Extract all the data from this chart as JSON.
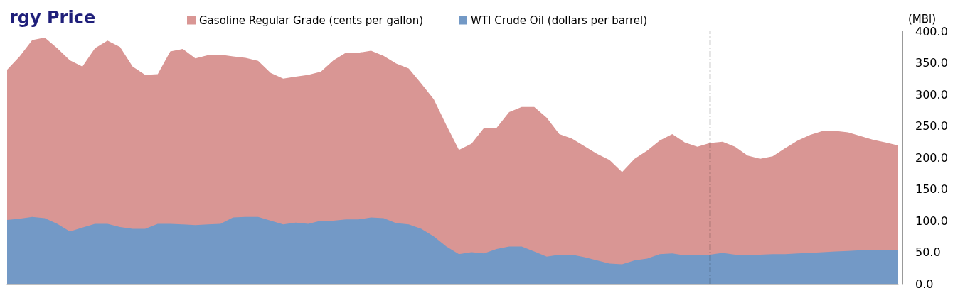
{
  "chart_data": {
    "type": "area",
    "title": "rgy Price",
    "ylabel": "(MBl)",
    "categories": [
      null,
      null,
      null,
      null,
      null,
      null,
      null,
      null,
      null,
      null,
      null,
      null,
      null,
      null,
      null,
      null,
      null,
      null,
      null,
      null,
      null,
      null,
      null,
      null,
      null,
      null,
      null,
      null,
      null,
      null,
      null,
      null,
      null,
      null,
      null,
      null,
      null,
      null,
      null,
      null,
      null,
      null,
      null,
      null,
      null,
      null,
      null,
      null,
      null,
      null,
      null,
      null,
      null,
      null,
      null,
      null,
      null,
      null,
      null,
      null,
      null,
      null,
      null,
      null,
      null,
      null,
      null,
      null,
      null,
      null,
      null,
      null
    ],
    "series": [
      {
        "name": "Gasoline Regular Grade (cents per gallon)",
        "color": "#d99694",
        "values": [
          339,
          360,
          386,
          390,
          373,
          354,
          344,
          373,
          385,
          375,
          344,
          331,
          332,
          368,
          372,
          357,
          362,
          363,
          360,
          358,
          353,
          334,
          325,
          328,
          331,
          336,
          354,
          366,
          366,
          369,
          361,
          349,
          341,
          317,
          292,
          251,
          212,
          222,
          247,
          247,
          272,
          280,
          280,
          263,
          237,
          230,
          218,
          206,
          196,
          177,
          198,
          211,
          227,
          237,
          224,
          217,
          223,
          225,
          217,
          203,
          198,
          202,
          215,
          227,
          236,
          242,
          242,
          240,
          234,
          228,
          224,
          219
        ]
      },
      {
        "name": "WTI Crude Oil (dollars per barrel)",
        "color": "#7399c6",
        "values": [
          101,
          103,
          106,
          104,
          95,
          83,
          89,
          95,
          95,
          90,
          87,
          87,
          95,
          95,
          94,
          93,
          94,
          95,
          105,
          106,
          106,
          100,
          94,
          97,
          95,
          100,
          100,
          102,
          102,
          105,
          104,
          96,
          94,
          87,
          75,
          59,
          47,
          50,
          48,
          55,
          59,
          59,
          51,
          43,
          46,
          46,
          42,
          37,
          32,
          31,
          37,
          40,
          47,
          48,
          45,
          45,
          46,
          49,
          46,
          46,
          46,
          47,
          47,
          48,
          49,
          50,
          51,
          52,
          53,
          53,
          53,
          53
        ]
      }
    ],
    "ylim": [
      0,
      400
    ],
    "yticks": [
      {
        "value": 0,
        "label": "0.0"
      },
      {
        "value": 50,
        "label": "50.0"
      },
      {
        "value": 100,
        "label": "100.0"
      },
      {
        "value": 150,
        "label": "150.0"
      },
      {
        "value": 200,
        "label": "200.0"
      },
      {
        "value": 250,
        "label": "250.0"
      },
      {
        "value": 300,
        "label": "300.0"
      },
      {
        "value": 350,
        "label": "350.0"
      },
      {
        "value": 400,
        "label": "400.0"
      }
    ],
    "tick_labels": "y",
    "grid": false,
    "legend": "top"
  }
}
